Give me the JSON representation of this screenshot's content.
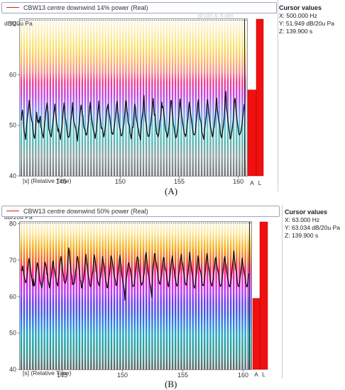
{
  "panels": [
    {
      "legend": "CBW13 centre downwind 14% power (Real)",
      "brand": "Brüel & Kjær",
      "y_unit_label": "dB/20u Pa",
      "x_axis_label": "[s] (Relative Time)",
      "cursor": {
        "title": "Cursor values",
        "x": "X: 500.000 Hz",
        "y": "Y: 51.949 dB/20u Pa",
        "z": "Z: 139.900 s"
      },
      "caption": "(A)",
      "overall_labels": [
        "A",
        "L"
      ]
    },
    {
      "legend": "CBW13 centre downwind 50% power (Real)",
      "y_unit_label": "dB/20u Pa",
      "x_axis_label": "[s] (Relative Time)",
      "cursor": {
        "title": "Cursor values",
        "x": "X: 63.000 Hz",
        "y": "Y: 63.034 dB/20u Pa",
        "z": "Z: 139.900 s"
      },
      "caption": "(B)",
      "overall_labels": [
        "A",
        "L"
      ]
    }
  ],
  "chart_data": [
    {
      "type": "line",
      "ylim": [
        40,
        71
      ],
      "yticks": [
        40,
        50,
        60,
        70
      ],
      "ytick_labels": [
        "40",
        "50",
        "60",
        "70"
      ],
      "xlim": [
        141.5,
        160.5
      ],
      "xticks": [
        145,
        150,
        155,
        160
      ],
      "xtick_labels": [
        "145",
        "150",
        "155",
        "160"
      ],
      "series_values": [
        51,
        52.5,
        53,
        51.6,
        49.6,
        48.5,
        48,
        47.2,
        49,
        50.5,
        51.5,
        52.4,
        53.6,
        55,
        53.6,
        52.6,
        51.7,
        51,
        50.6,
        49.3,
        48.4,
        47.7,
        47.4,
        48.4,
        50.4,
        52.6,
        51.4,
        50.6,
        51,
        50.4,
        51.2,
        51.8,
        49.7,
        49.4,
        48.5,
        48.1,
        47.5,
        48.8,
        50,
        51.1,
        52.4,
        53.4,
        54.4,
        53.6,
        52.2,
        49.3,
        48.9,
        48.3,
        48,
        47.7,
        48.8,
        49.8,
        50.8,
        51.8,
        53,
        54.2,
        52.8,
        51.6,
        50.4,
        49.8,
        48.8,
        49.3,
        48.5,
        47.9,
        47.2,
        48.5,
        49.1,
        50.2,
        51.9,
        53.2,
        54.4,
        53.1,
        51.5,
        50.9,
        49.9,
        48.7,
        47.9,
        47.6,
        47.7,
        48,
        49.3,
        50.8,
        51.6,
        52.8,
        54.5,
        52.2,
        50.8,
        50.3,
        49.8,
        49.4,
        48.6,
        47.7,
        46.9,
        48.4,
        49.6,
        50.5,
        52,
        53.1,
        54,
        53.2,
        52,
        51.9,
        50.2,
        49.4,
        49.2,
        48.6,
        48.1,
        48.1,
        48.7,
        49.9,
        50.7,
        52.2,
        53.6,
        54.6,
        52.6,
        51.8,
        50.6,
        49.9,
        49,
        48.6,
        48.1,
        47.4,
        48.4,
        48.9,
        50.6,
        51.8,
        53.3,
        54.8,
        53,
        51.6,
        50.7,
        49.4,
        49.5,
        49.1,
        48.4,
        47.7,
        48.2,
        49.2,
        50.2,
        51.6,
        53,
        53.6,
        54.2,
        53,
        52.1,
        51.6,
        50.5,
        49.3,
        48.4,
        48.5,
        48.2,
        48.5,
        49.6,
        50.4,
        51.4,
        52.6,
        54.1,
        54.8,
        53,
        52,
        50.6,
        49.6,
        49.1,
        48.1,
        47.9,
        48.1,
        48.7,
        49.7,
        50.3,
        51.7,
        53.1,
        54.9,
        54.6,
        53,
        52.2,
        50.6,
        50.2,
        50.1,
        48.5,
        48,
        47.3,
        48.3,
        49.6,
        49.6,
        51.3,
        53.1,
        54.2,
        53.3,
        51.6,
        50.9,
        50.3,
        49.6,
        49.1,
        48.1,
        47.9,
        47.1,
        48.9,
        50.8,
        51.8,
        52.7,
        54.7,
        55.9,
        52.5,
        51.5,
        50.6,
        49.9,
        48.7,
        48.1,
        47.8,
        47.8,
        48.3,
        49.7,
        50.3,
        51.5,
        52.7,
        54.6,
        55.3,
        53.3,
        52,
        52.2,
        50.4,
        49,
        48.2,
        48.2,
        47.7,
        48.2,
        49.3,
        50.9,
        51.3,
        52.6,
        54.6,
        53.5,
        53.7,
        52.8,
        51.8,
        50.4,
        49.3,
        48.7,
        48.5,
        47.6,
        48.1,
        48.8,
        50.1,
        51.6,
        53.1,
        54.9,
        54.9,
        53,
        51.9,
        50.2,
        49.8,
        48.8,
        48,
        47.5,
        47.7,
        48.4,
        49.2,
        50.5,
        51.9,
        53.8,
        55.2,
        53.7,
        52.4,
        51.6,
        50.7,
        49.9,
        49,
        48.2,
        48.2,
        47.8,
        48.3,
        49.5,
        50.6,
        51.5,
        53.3,
        54.6,
        53.8,
        52.6,
        51.6,
        50.8,
        49.7,
        48.8,
        48.2,
        48.1,
        48.2,
        48.6,
        50.1,
        51.3,
        52.6,
        54.4,
        55.1,
        53,
        51.9,
        51.1,
        50.9,
        49.7,
        48.4,
        48.2,
        47.6,
        47.2,
        49.2,
        49.8,
        51,
        52.1,
        54.1,
        55.1,
        54,
        52.4,
        51.6,
        50.4,
        49.6,
        49.1,
        48.5,
        47.7,
        48.1,
        49.3,
        49.7,
        51.1,
        52.5,
        54.4,
        55.4,
        53.1,
        52.2,
        51.1,
        50.5,
        50.1,
        48.4,
        47.9,
        47.5,
        48.2,
        49.2,
        50.1,
        51.3,
        53.2,
        55.5,
        56.7,
        53.4,
        52.7,
        51.4,
        50.3,
        49.3,
        48.5,
        47.3,
        47.5,
        48.2,
        48.9,
        50,
        51,
        52.9,
        54.8,
        55.3,
        53.8,
        52.4,
        51.4,
        50.4,
        49.5,
        48.5,
        48.1,
        48.2,
        48.5,
        48.9,
        49.8,
        50.9,
        52,
        53,
        54.2
      ],
      "overall_bars": {
        "A": 57.0,
        "L": 71
      }
    },
    {
      "type": "line",
      "ylim": [
        40,
        80.5
      ],
      "yticks": [
        40,
        50,
        60,
        70,
        80
      ],
      "ytick_labels": [
        "40",
        "50",
        "60",
        "70",
        "80"
      ],
      "xlim": [
        141.5,
        160.5
      ],
      "xticks": [
        145,
        150,
        155,
        160
      ],
      "xtick_labels": [
        "145",
        "150",
        "155",
        "160"
      ],
      "series_values": [
        67.5,
        67.1,
        68.4,
        67.2,
        65.8,
        65.3,
        64.3,
        63.8,
        64.5,
        65.6,
        67,
        68.9,
        70.5,
        69.6,
        68.2,
        66.9,
        65.6,
        64.3,
        63,
        64.8,
        62.9,
        63.3,
        64.4,
        66.2,
        67.4,
        69.3,
        68.7,
        68,
        66.4,
        64.6,
        63.5,
        63.1,
        62.4,
        63.5,
        64.6,
        66.6,
        68.3,
        69.5,
        68.9,
        68,
        66.1,
        66.3,
        64.1,
        63.7,
        62.4,
        63.3,
        64.7,
        65.8,
        67.6,
        69.5,
        69.8,
        67.9,
        67.2,
        65.9,
        64.9,
        63.6,
        63.6,
        62.9,
        65,
        66.1,
        68.1,
        70,
        71,
        69.6,
        68.5,
        66.7,
        65.7,
        64.1,
        63.9,
        63.7,
        64.4,
        65.6,
        67.5,
        70,
        73.4,
        72.6,
        69.9,
        68.2,
        66.2,
        65.6,
        63.3,
        63.7,
        63.4,
        63.8,
        65.2,
        67.2,
        68.1,
        70.3,
        71,
        69.7,
        67.6,
        66.6,
        64.4,
        64.3,
        62.4,
        62.4,
        63.6,
        64.5,
        66.2,
        68.3,
        70.1,
        71.6,
        69.4,
        68.1,
        66.3,
        65.6,
        64.7,
        63.2,
        62.7,
        63.1,
        64.4,
        66.2,
        67.3,
        69.8,
        71.5,
        70.5,
        69,
        66.8,
        66.5,
        64.6,
        63.9,
        63.3,
        62.9,
        64.5,
        65.5,
        67.1,
        69,
        71,
        69.6,
        68.8,
        67.5,
        65.5,
        64.3,
        63.9,
        62.5,
        62.4,
        63.9,
        65.3,
        66.2,
        68.2,
        71.2,
        70.8,
        69.9,
        68.5,
        67.3,
        65.6,
        65.2,
        64.6,
        63.1,
        63.1,
        64,
        66.1,
        67.5,
        69.7,
        71.3,
        69.7,
        68.4,
        66,
        64.9,
        63.6,
        62.8,
        61.5,
        59,
        62.7,
        64.8,
        65.9,
        67.3,
        69,
        69.3,
        68.3,
        67.7,
        66.5,
        65.1,
        63.8,
        62.8,
        62.9,
        62.9,
        64.4,
        65.6,
        67.4,
        69.4,
        70.9,
        70.8,
        70.1,
        67.5,
        66.2,
        64.7,
        63.8,
        63.1,
        63.7,
        63.9,
        65.5,
        66.2,
        68.5,
        71.1,
        72.1,
        70.4,
        68.7,
        66.7,
        65.9,
        64.6,
        63.5,
        62.8,
        61.2,
        59.8,
        64.9,
        67.6,
        69.3,
        71.8,
        71.7,
        69.9,
        68.9,
        67.7,
        66.5,
        64.9,
        64.2,
        63.5,
        63.4,
        64.9,
        65.6,
        67.4,
        69.3,
        70.7,
        70.7,
        68.6,
        67.4,
        67.1,
        66,
        64.5,
        63.3,
        62.7,
        64.1,
        65.1,
        66.5,
        68.4,
        70.1,
        71.2,
        69.2,
        68.1,
        67.2,
        65.2,
        64.8,
        63.7,
        62.9,
        63,
        64,
        66,
        67,
        69.1,
        70.6,
        71.6,
        69.7,
        69,
        67.4,
        66.3,
        65.1,
        63.7,
        63.3,
        63.1,
        64.6,
        65.7,
        67.3,
        69.3,
        72.2,
        70.4,
        69.4,
        67.4,
        66.1,
        64.7,
        62.9,
        62.7,
        62.3,
        64.2,
        65.5,
        66.4,
        68.6,
        71.2,
        70.2,
        68.4,
        67.5,
        66.9,
        65.8,
        64.2,
        63.1,
        63.2,
        63,
        64.9,
        65.9,
        67.8,
        70.1,
        71.8,
        70.6,
        68.8,
        67.7,
        66.7,
        64.7,
        63.7,
        63.5,
        62.9,
        64.1,
        64.9,
        67,
        68.2,
        70.3,
        70.8,
        69.5,
        68.1,
        67.2,
        66.3,
        64.6,
        63.5,
        62.8,
        63,
        63.6,
        65.2,
        66.6,
        68,
        70.3,
        71,
        69.3,
        68.6,
        66.8,
        65.2,
        64.7,
        63.7,
        62.8,
        62.7,
        63.7,
        65,
        66.7,
        68.9,
        70.5,
        72.5,
        70.5,
        68.9,
        67.5,
        66.8,
        65.1,
        63.3,
        62.9,
        62.7,
        63.9,
        65.5,
        66.8,
        68.5,
        70.6,
        69.2,
        68.2,
        66.9,
        65.8,
        64.9,
        63.5,
        62.7,
        62.8,
        64.4,
        65.9,
        66.3
      ],
      "overall_bars": {
        "A": 59.5,
        "L": 80.5
      }
    }
  ]
}
